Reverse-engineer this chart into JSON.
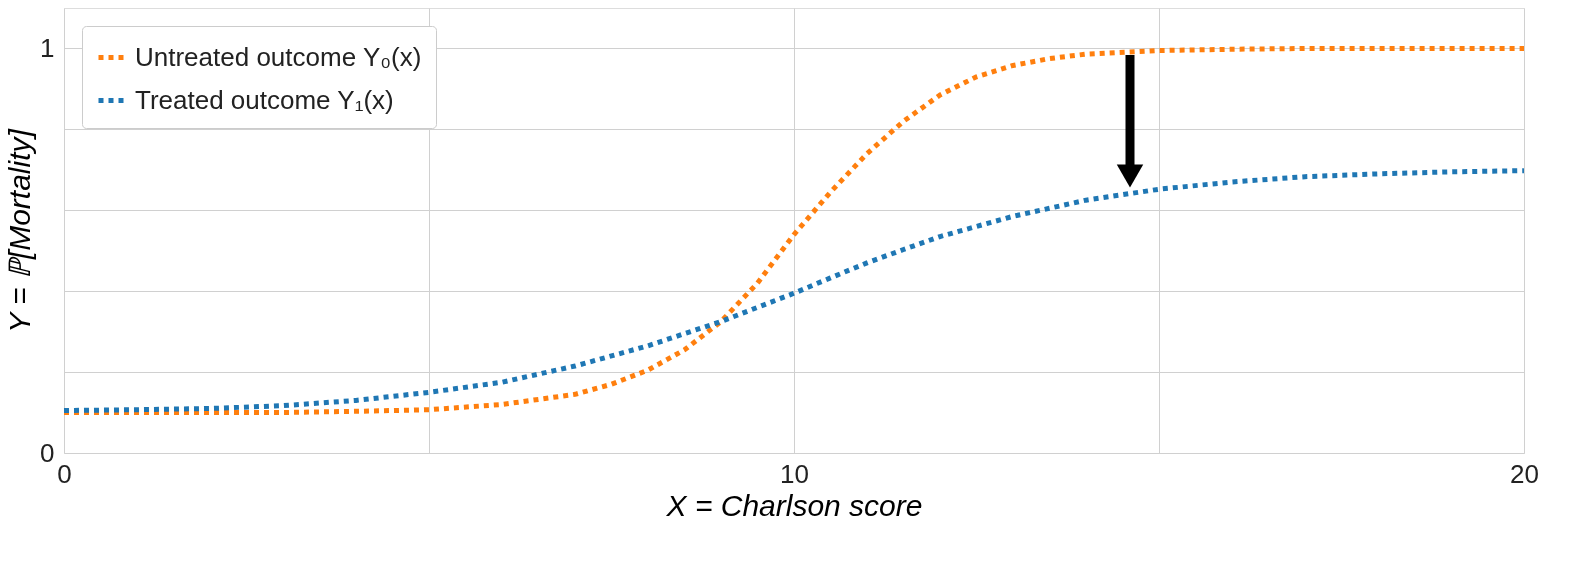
{
  "chart_data": {
    "type": "line",
    "xlabel": "X = Charlson score",
    "ylabel": "Y = ℙ[Mortality]",
    "x": [
      0,
      1,
      2,
      3,
      4,
      5,
      6,
      7,
      7.5,
      8,
      8.5,
      9,
      9.5,
      10,
      10.5,
      11,
      11.5,
      12,
      12.5,
      13,
      13.5,
      14,
      15,
      16,
      17,
      18,
      19,
      20
    ],
    "series": [
      {
        "name": "Untreated outcome Y₀(x)",
        "color": "#ff7f0e",
        "values": [
          0.1,
          0.1,
          0.1,
          0.1,
          0.103,
          0.107,
          0.12,
          0.145,
          0.17,
          0.205,
          0.255,
          0.325,
          0.42,
          0.54,
          0.645,
          0.74,
          0.82,
          0.885,
          0.93,
          0.958,
          0.975,
          0.986,
          0.995,
          0.998,
          1.0,
          1.0,
          1.0,
          1.0
        ]
      },
      {
        "name": "Treated outcome Y₁(x)",
        "color": "#1f77b4",
        "values": [
          0.105,
          0.107,
          0.11,
          0.117,
          0.13,
          0.15,
          0.175,
          0.215,
          0.24,
          0.265,
          0.295,
          0.325,
          0.36,
          0.395,
          0.433,
          0.47,
          0.503,
          0.535,
          0.56,
          0.585,
          0.605,
          0.625,
          0.652,
          0.67,
          0.683,
          0.69,
          0.695,
          0.698
        ]
      }
    ],
    "xlim": [
      0,
      20
    ],
    "xticks": [
      0,
      {
        "value": 5,
        "label": null
      },
      10,
      {
        "value": 15,
        "label": null
      },
      20
    ],
    "ylim": [
      0,
      1.1
    ],
    "yticks": [
      0,
      {
        "value": 0.2,
        "label": null
      },
      {
        "value": 0.4,
        "label": null
      },
      {
        "value": 0.6,
        "label": null
      },
      {
        "value": 0.8,
        "label": null
      },
      1
    ],
    "grid": true,
    "legend": "top left",
    "marker": "none",
    "line_style": "dotted"
  }
}
